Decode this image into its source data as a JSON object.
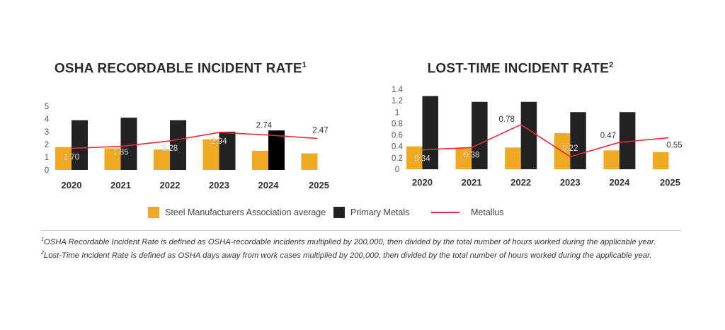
{
  "colors": {
    "sma": "#eeaa22",
    "primary": "#222222",
    "metallus": "#e8293a",
    "axis_text": "#555555"
  },
  "legend": {
    "sma": "Steel Manufacturers Association average",
    "primary": "Primary Metals",
    "metallus": "Metallus"
  },
  "footnotes": [
    {
      "mark": "1",
      "text": "OSHA Recordable Incident Rate is defined as OSHA-recordable incidents multiplied by 200,000, then divided by the total number of hours worked during the applicable year."
    },
    {
      "mark": "2",
      "text": "Lost-Time Incident Rate is defined as OSHA days away from work cases multiplied by 200,000, then divided by the total number of hours worked during the applicable year."
    }
  ],
  "chart_data": [
    {
      "type": "bar",
      "title": "OSHA RECORDABLE INCIDENT RATE",
      "title_sup": "1",
      "categories": [
        "2020",
        "2021",
        "2022",
        "2023",
        "2024",
        "2025"
      ],
      "ylim": [
        0,
        5
      ],
      "yticks": [
        "0",
        "1",
        "2",
        "3",
        "4",
        "5"
      ],
      "grid": false,
      "series": [
        {
          "name": "Steel Manufacturers Association average",
          "type": "bar",
          "values": [
            1.8,
            1.7,
            1.6,
            2.4,
            1.5,
            1.3
          ]
        },
        {
          "name": "Primary Metals",
          "type": "bar",
          "values": [
            3.9,
            4.1,
            3.9,
            3.0,
            3.1,
            null
          ]
        },
        {
          "name": "Metallus",
          "type": "line",
          "values": [
            1.7,
            1.85,
            2.28,
            2.94,
            2.74,
            2.47
          ],
          "labels": [
            "1.70",
            "1.85",
            "2.28",
            "2.94",
            "2.74",
            "2.47"
          ]
        }
      ],
      "legend": "bottom"
    },
    {
      "type": "bar",
      "title": "LOST-TIME INCIDENT RATE",
      "title_sup": "2",
      "categories": [
        "2020",
        "2021",
        "2022",
        "2023",
        "2024",
        "2025"
      ],
      "ylim": [
        0,
        1.4
      ],
      "yticks": [
        "0",
        "0.2",
        "0.4",
        "0.6",
        "0.8",
        "1",
        "1.2",
        "1.4"
      ],
      "grid": false,
      "series": [
        {
          "name": "Steel Manufacturers Association average",
          "type": "bar",
          "values": [
            0.4,
            0.38,
            0.38,
            0.63,
            0.33,
            0.3
          ]
        },
        {
          "name": "Primary Metals",
          "type": "bar",
          "values": [
            1.28,
            1.18,
            1.18,
            1.0,
            1.0,
            null
          ]
        },
        {
          "name": "Metallus",
          "type": "line",
          "values": [
            0.34,
            0.38,
            0.78,
            0.22,
            0.47,
            0.55
          ],
          "labels": [
            "0.34",
            "0.38",
            "0.78",
            "0.22",
            "0.47",
            "0.55"
          ]
        }
      ],
      "legend": "bottom"
    }
  ]
}
